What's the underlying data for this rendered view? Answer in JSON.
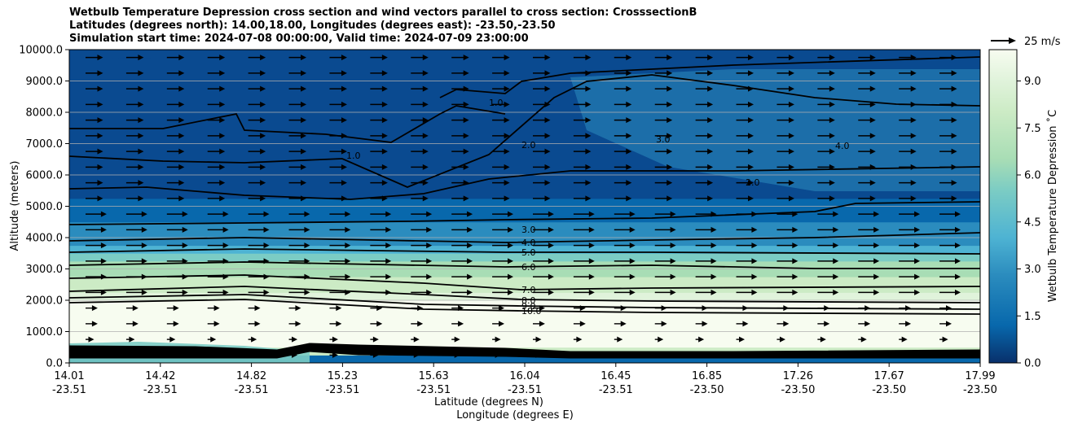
{
  "chart_data": {
    "type": "heatmap",
    "title_lines": [
      "Wetbulb Temperature Depression cross section and wind vectors parallel to cross section: CrosssectionB",
      "Latitudes (degrees north): 14.00,18.00, Longitudes (degrees east): -23.50,-23.50",
      "Simulation start time: 2024-07-08 00:00:00, Valid time: 2024-07-09 23:00:00"
    ],
    "ylabel": "Altitude (meters)",
    "xlabel_line1": "Latitude (degrees N)",
    "xlabel_line2": "Longitude (degrees E)",
    "ylim": [
      0,
      10000
    ],
    "y_ticks": [
      "0.0",
      "1000.0",
      "2000.0",
      "3000.0",
      "4000.0",
      "5000.0",
      "6000.0",
      "7000.0",
      "8000.0",
      "9000.0",
      "10000.0"
    ],
    "x_tick_lat": [
      "14.01",
      "14.42",
      "14.82",
      "15.23",
      "15.63",
      "16.04",
      "16.45",
      "16.85",
      "17.26",
      "17.67",
      "17.99"
    ],
    "x_tick_lon": [
      "-23.51",
      "-23.51",
      "-23.51",
      "-23.51",
      "-23.51",
      "-23.51",
      "-23.51",
      "-23.50",
      "-23.50",
      "-23.50",
      "-23.50"
    ],
    "grid": "horizontal",
    "colorbar": {
      "label": "Wetbulb Temperature Depression ˚C",
      "min": 0.0,
      "max": 10.0,
      "tick_values": [
        0.0,
        1.5,
        3.0,
        4.5,
        6.0,
        7.5,
        9.0
      ],
      "tick_labels": [
        "0.0",
        "1.5",
        "3.0",
        "4.5",
        "6.0",
        "7.5",
        "9.0"
      ]
    },
    "wind_key_label": "25 m/s",
    "contour_labels": [
      "1.0",
      "2.0",
      "3.0",
      "4.0",
      "5.0",
      "6.0",
      "7.0",
      "8.0",
      "9.0",
      "10.0"
    ],
    "profile": [
      {
        "z": 0,
        "v": 0.5
      },
      {
        "z": 500,
        "v": 10
      },
      {
        "z": 1500,
        "v": 10
      },
      {
        "z": 2000,
        "v": 8.8
      },
      {
        "z": 2500,
        "v": 7.4
      },
      {
        "z": 3000,
        "v": 6.6
      },
      {
        "z": 3500,
        "v": 5.0
      },
      {
        "z": 4000,
        "v": 3.6
      },
      {
        "z": 4500,
        "v": 2.9
      },
      {
        "z": 5000,
        "v": 2.2
      },
      {
        "z": 6000,
        "v": 1.6
      },
      {
        "z": 7000,
        "v": 1.2
      },
      {
        "z": 8000,
        "v": 1.4
      },
      {
        "z": 9000,
        "v": 1.5
      },
      {
        "z": 10000,
        "v": 1.2
      }
    ],
    "colors": {
      "scale": [
        "#08306b",
        "#0a4a90",
        "#0868ac",
        "#2b8cbe",
        "#4eb3d3",
        "#7bccc4",
        "#a8ddb5",
        "#ccebc5",
        "#e0f3db",
        "#f7fcf0"
      ],
      "contour": "#000000",
      "grid": "#b0b0b0"
    }
  }
}
